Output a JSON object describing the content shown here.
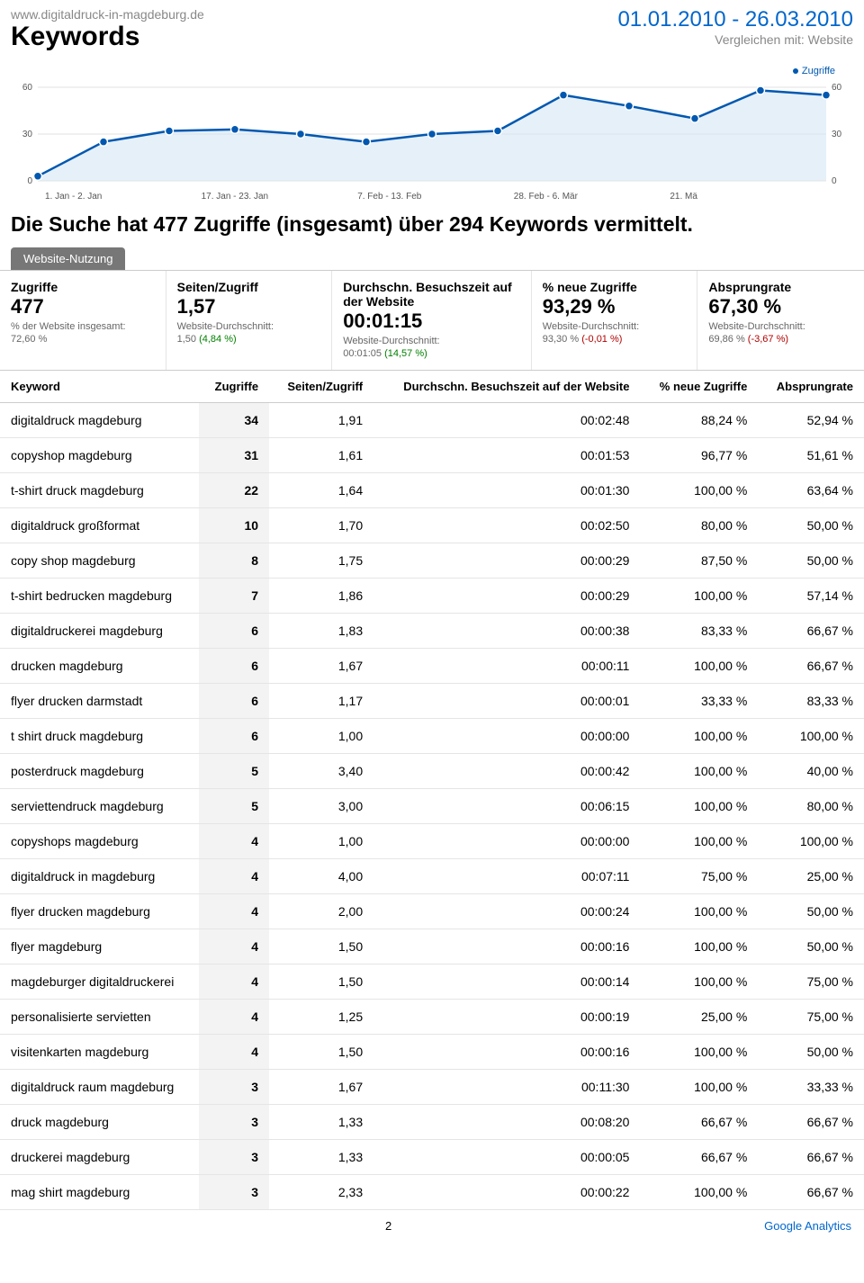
{
  "header": {
    "site_url": "www.digitaldruck-in-magdeburg.de",
    "page_title": "Keywords",
    "date_range": "01.01.2010 - 26.03.2010",
    "compare_text": "Vergleichen mit: Website"
  },
  "chart": {
    "legend_label": "Zugriffe",
    "y_ticks": [
      60,
      30,
      0
    ],
    "x_labels": [
      "1. Jan - 2. Jan",
      "17. Jan - 23. Jan",
      "7. Feb - 13. Feb",
      "28. Feb - 6. Mär",
      "21. Mä"
    ],
    "series_color": "#0058b0",
    "fill_color": "#d6e6f5",
    "grid_color": "#e0e0e0",
    "background_color": "#ffffff",
    "ymax": 60,
    "values": [
      3,
      25,
      32,
      33,
      30,
      25,
      30,
      32,
      55,
      48,
      40,
      58,
      55
    ]
  },
  "headline": "Die Suche hat 477 Zugriffe (insgesamt) über 294 Keywords vermittelt.",
  "tab_label": "Website-Nutzung",
  "metrics": [
    {
      "label": "Zugriffe",
      "value": "477",
      "sub1": "% der Website insgesamt:",
      "sub2": "72,60 %",
      "pct": ""
    },
    {
      "label": "Seiten/Zugriff",
      "value": "1,57",
      "sub1": "Website-Durchschnitt:",
      "sub2": "1,50",
      "pct": "(4,84 %)"
    },
    {
      "label": "Durchschn. Besuchszeit auf der Website",
      "value": "00:01:15",
      "sub1": "Website-Durchschnitt:",
      "sub2": "00:01:05",
      "pct": "(14,57 %)"
    },
    {
      "label": "% neue Zugriffe",
      "value": "93,29 %",
      "sub1": "Website-Durchschnitt:",
      "sub2": "93,30 %",
      "pct": "(-0,01 %)"
    },
    {
      "label": "Absprungrate",
      "value": "67,30 %",
      "sub1": "Website-Durchschnitt:",
      "sub2": "69,86 %",
      "pct": "(-3,67 %)"
    }
  ],
  "table": {
    "columns": [
      "Keyword",
      "Zugriffe",
      "Seiten/Zugriff",
      "Durchschn. Besuchszeit auf der Website",
      "% neue Zugriffe",
      "Absprungrate"
    ],
    "rows": [
      [
        "digitaldruck magdeburg",
        "34",
        "1,91",
        "00:02:48",
        "88,24 %",
        "52,94 %"
      ],
      [
        "copyshop magdeburg",
        "31",
        "1,61",
        "00:01:53",
        "96,77 %",
        "51,61 %"
      ],
      [
        "t-shirt druck magdeburg",
        "22",
        "1,64",
        "00:01:30",
        "100,00 %",
        "63,64 %"
      ],
      [
        "digitaldruck großformat",
        "10",
        "1,70",
        "00:02:50",
        "80,00 %",
        "50,00 %"
      ],
      [
        "copy shop magdeburg",
        "8",
        "1,75",
        "00:00:29",
        "87,50 %",
        "50,00 %"
      ],
      [
        "t-shirt bedrucken magdeburg",
        "7",
        "1,86",
        "00:00:29",
        "100,00 %",
        "57,14 %"
      ],
      [
        "digitaldruckerei magdeburg",
        "6",
        "1,83",
        "00:00:38",
        "83,33 %",
        "66,67 %"
      ],
      [
        "drucken magdeburg",
        "6",
        "1,67",
        "00:00:11",
        "100,00 %",
        "66,67 %"
      ],
      [
        "flyer drucken darmstadt",
        "6",
        "1,17",
        "00:00:01",
        "33,33 %",
        "83,33 %"
      ],
      [
        "t shirt druck magdeburg",
        "6",
        "1,00",
        "00:00:00",
        "100,00 %",
        "100,00 %"
      ],
      [
        "posterdruck magdeburg",
        "5",
        "3,40",
        "00:00:42",
        "100,00 %",
        "40,00 %"
      ],
      [
        "serviettendruck magdeburg",
        "5",
        "3,00",
        "00:06:15",
        "100,00 %",
        "80,00 %"
      ],
      [
        "copyshops magdeburg",
        "4",
        "1,00",
        "00:00:00",
        "100,00 %",
        "100,00 %"
      ],
      [
        "digitaldruck in magdeburg",
        "4",
        "4,00",
        "00:07:11",
        "75,00 %",
        "25,00 %"
      ],
      [
        "flyer drucken magdeburg",
        "4",
        "2,00",
        "00:00:24",
        "100,00 %",
        "50,00 %"
      ],
      [
        "flyer magdeburg",
        "4",
        "1,50",
        "00:00:16",
        "100,00 %",
        "50,00 %"
      ],
      [
        "magdeburger digitaldruckerei",
        "4",
        "1,50",
        "00:00:14",
        "100,00 %",
        "75,00 %"
      ],
      [
        "personalisierte servietten",
        "4",
        "1,25",
        "00:00:19",
        "25,00 %",
        "75,00 %"
      ],
      [
        "visitenkarten magdeburg",
        "4",
        "1,50",
        "00:00:16",
        "100,00 %",
        "50,00 %"
      ],
      [
        "digitaldruck raum magdeburg",
        "3",
        "1,67",
        "00:11:30",
        "100,00 %",
        "33,33 %"
      ],
      [
        "druck magdeburg",
        "3",
        "1,33",
        "00:08:20",
        "66,67 %",
        "66,67 %"
      ],
      [
        "druckerei magdeburg",
        "3",
        "1,33",
        "00:00:05",
        "66,67 %",
        "66,67 %"
      ],
      [
        "mag shirt magdeburg",
        "3",
        "2,33",
        "00:00:22",
        "100,00 %",
        "66,67 %"
      ]
    ]
  },
  "footer": {
    "page_num": "2",
    "brand": "Google Analytics"
  }
}
